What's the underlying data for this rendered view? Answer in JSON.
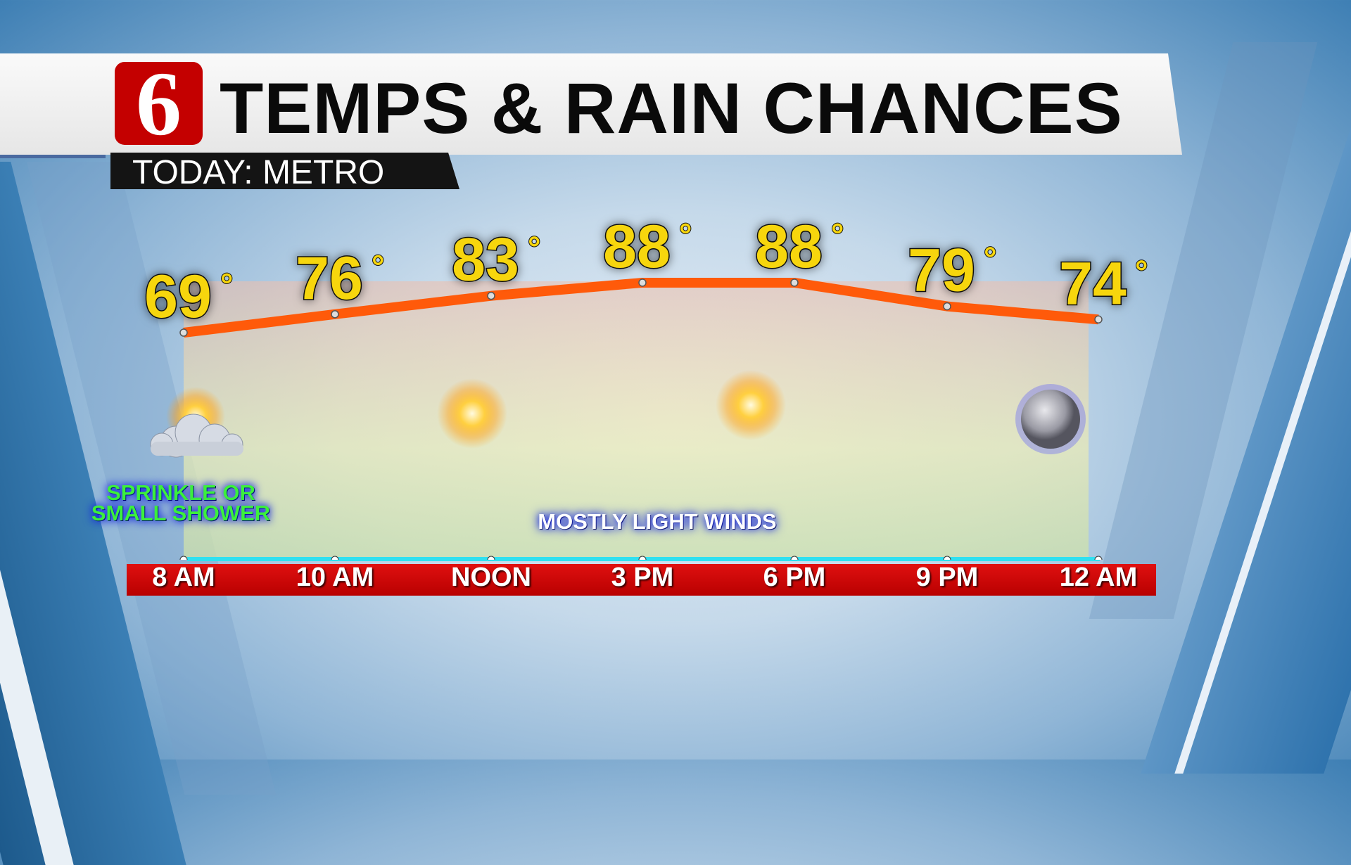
{
  "header": {
    "logo": "6",
    "title": "TEMPS & RAIN CHANCES",
    "subtitle": "TODAY: METRO"
  },
  "annotations": {
    "sprinkle_line1": "SPRINKLE OR",
    "sprinkle_line2": "SMALL SHOWER",
    "winds": "MOSTLY LIGHT WINDS"
  },
  "colors": {
    "temp_text": "#f7d60c",
    "temp_line": "#ff5a0a",
    "time_bar": "#d40000",
    "baseline": "#30e0f0",
    "sprinkle_text": "#3cf03c"
  },
  "chart_data": {
    "type": "line",
    "title": "TEMPS & RAIN CHANCES",
    "categories": [
      "8 AM",
      "10 AM",
      "NOON",
      "3 PM",
      "6 PM",
      "9 PM",
      "12 AM"
    ],
    "values": [
      69,
      76,
      83,
      88,
      88,
      79,
      74
    ],
    "value_suffix": "°",
    "icons": [
      "partly-cloudy-icon",
      null,
      "sun-icon",
      null,
      "sun-icon",
      null,
      "moon-icon"
    ],
    "grid": false
  }
}
